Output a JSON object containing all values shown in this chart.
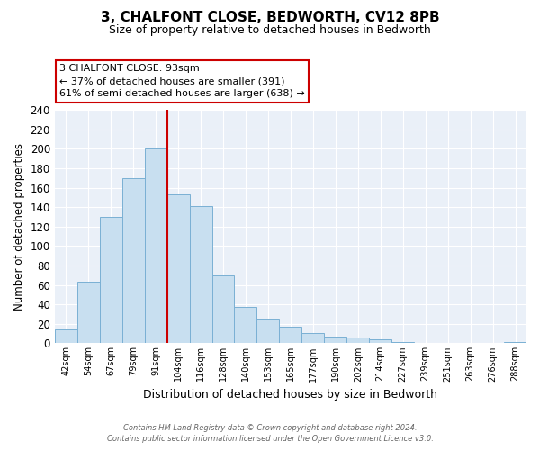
{
  "title": "3, CHALFONT CLOSE, BEDWORTH, CV12 8PB",
  "subtitle": "Size of property relative to detached houses in Bedworth",
  "xlabel": "Distribution of detached houses by size in Bedworth",
  "ylabel": "Number of detached properties",
  "bar_color": "#c8dff0",
  "bar_edge_color": "#7ab0d4",
  "highlight_line_color": "#cc0000",
  "background_color": "#ffffff",
  "plot_bg_color": "#eaf0f8",
  "grid_color": "#ffffff",
  "categories": [
    "42sqm",
    "54sqm",
    "67sqm",
    "79sqm",
    "91sqm",
    "104sqm",
    "116sqm",
    "128sqm",
    "140sqm",
    "153sqm",
    "165sqm",
    "177sqm",
    "190sqm",
    "202sqm",
    "214sqm",
    "227sqm",
    "239sqm",
    "251sqm",
    "263sqm",
    "276sqm",
    "288sqm"
  ],
  "values": [
    14,
    63,
    130,
    170,
    200,
    153,
    141,
    70,
    37,
    25,
    17,
    11,
    7,
    6,
    4,
    1,
    0,
    0,
    0,
    0,
    1
  ],
  "highlight_index": 4,
  "property_label": "3 CHALFONT CLOSE: 93sqm",
  "pct_smaller": 37,
  "num_smaller": 391,
  "pct_larger_semi": 61,
  "num_larger_semi": 638,
  "ylim": [
    0,
    240
  ],
  "yticks": [
    0,
    20,
    40,
    60,
    80,
    100,
    120,
    140,
    160,
    180,
    200,
    220,
    240
  ],
  "annotation_box_color": "#ffffff",
  "annotation_box_edge_color": "#cc0000",
  "footer_line1": "Contains HM Land Registry data © Crown copyright and database right 2024.",
  "footer_line2": "Contains public sector information licensed under the Open Government Licence v3.0."
}
